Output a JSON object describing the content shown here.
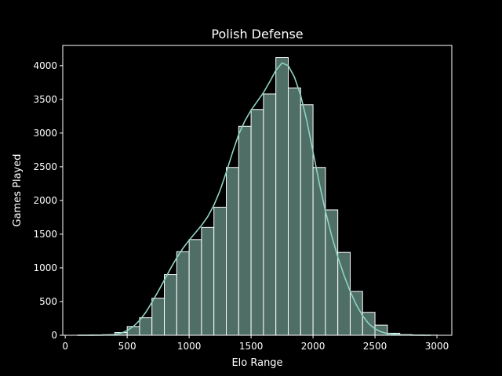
{
  "chart_data": {
    "type": "bar",
    "title": "Polish Defense",
    "xlabel": "Elo Range",
    "ylabel": "Games Played",
    "xlim": [
      -20,
      3120
    ],
    "ylim": [
      0,
      4300
    ],
    "xticks": [
      0,
      500,
      1000,
      1500,
      2000,
      2500,
      3000
    ],
    "yticks": [
      0,
      500,
      1000,
      1500,
      2000,
      2500,
      3000,
      3500,
      4000
    ],
    "grid": false,
    "bins": [
      {
        "x0": 100,
        "x1": 200,
        "value": 2
      },
      {
        "x0": 200,
        "x1": 300,
        "value": 5
      },
      {
        "x0": 300,
        "x1": 400,
        "value": 8
      },
      {
        "x0": 400,
        "x1": 500,
        "value": 40
      },
      {
        "x0": 500,
        "x1": 600,
        "value": 130
      },
      {
        "x0": 600,
        "x1": 700,
        "value": 260
      },
      {
        "x0": 700,
        "x1": 800,
        "value": 550
      },
      {
        "x0": 800,
        "x1": 900,
        "value": 900
      },
      {
        "x0": 900,
        "x1": 1000,
        "value": 1240
      },
      {
        "x0": 1000,
        "x1": 1100,
        "value": 1420
      },
      {
        "x0": 1100,
        "x1": 1200,
        "value": 1600
      },
      {
        "x0": 1200,
        "x1": 1300,
        "value": 1900
      },
      {
        "x0": 1300,
        "x1": 1400,
        "value": 2490
      },
      {
        "x0": 1400,
        "x1": 1500,
        "value": 3100
      },
      {
        "x0": 1500,
        "x1": 1600,
        "value": 3350
      },
      {
        "x0": 1600,
        "x1": 1700,
        "value": 3580
      },
      {
        "x0": 1700,
        "x1": 1800,
        "value": 4120
      },
      {
        "x0": 1800,
        "x1": 1900,
        "value": 3670
      },
      {
        "x0": 1900,
        "x1": 2000,
        "value": 3420
      },
      {
        "x0": 2000,
        "x1": 2100,
        "value": 2490
      },
      {
        "x0": 2100,
        "x1": 2200,
        "value": 1860
      },
      {
        "x0": 2200,
        "x1": 2300,
        "value": 1230
      },
      {
        "x0": 2300,
        "x1": 2400,
        "value": 650
      },
      {
        "x0": 2400,
        "x1": 2500,
        "value": 340
      },
      {
        "x0": 2500,
        "x1": 2600,
        "value": 150
      },
      {
        "x0": 2600,
        "x1": 2700,
        "value": 30
      },
      {
        "x0": 2700,
        "x1": 2800,
        "value": 10
      },
      {
        "x0": 2800,
        "x1": 2900,
        "value": 4
      },
      {
        "x0": 2900,
        "x1": 3000,
        "value": 2
      }
    ],
    "kde": {
      "x": [
        100,
        200,
        300,
        400,
        450,
        500,
        550,
        600,
        650,
        700,
        750,
        800,
        850,
        900,
        950,
        1000,
        1050,
        1100,
        1150,
        1200,
        1250,
        1300,
        1350,
        1400,
        1450,
        1500,
        1550,
        1600,
        1650,
        1700,
        1750,
        1800,
        1850,
        1900,
        1950,
        2000,
        2050,
        2100,
        2150,
        2200,
        2250,
        2300,
        2350,
        2400,
        2450,
        2500,
        2550,
        2600,
        2700,
        2800,
        2900,
        2950
      ],
      "y": [
        0,
        0,
        2,
        10,
        30,
        70,
        130,
        220,
        340,
        490,
        650,
        820,
        990,
        1150,
        1290,
        1410,
        1520,
        1630,
        1760,
        1930,
        2150,
        2420,
        2710,
        2980,
        3180,
        3340,
        3470,
        3600,
        3760,
        3930,
        4040,
        4000,
        3830,
        3560,
        3180,
        2720,
        2260,
        1840,
        1480,
        1160,
        890,
        650,
        450,
        290,
        170,
        95,
        50,
        25,
        6,
        2,
        0,
        0
      ]
    },
    "colors": {
      "background": "#000000",
      "bar_fill": "#4e6e66",
      "bar_edge": "#ffffff",
      "kde_line": "#8fd3c3",
      "axes": "#ffffff",
      "text": "#ffffff"
    }
  }
}
